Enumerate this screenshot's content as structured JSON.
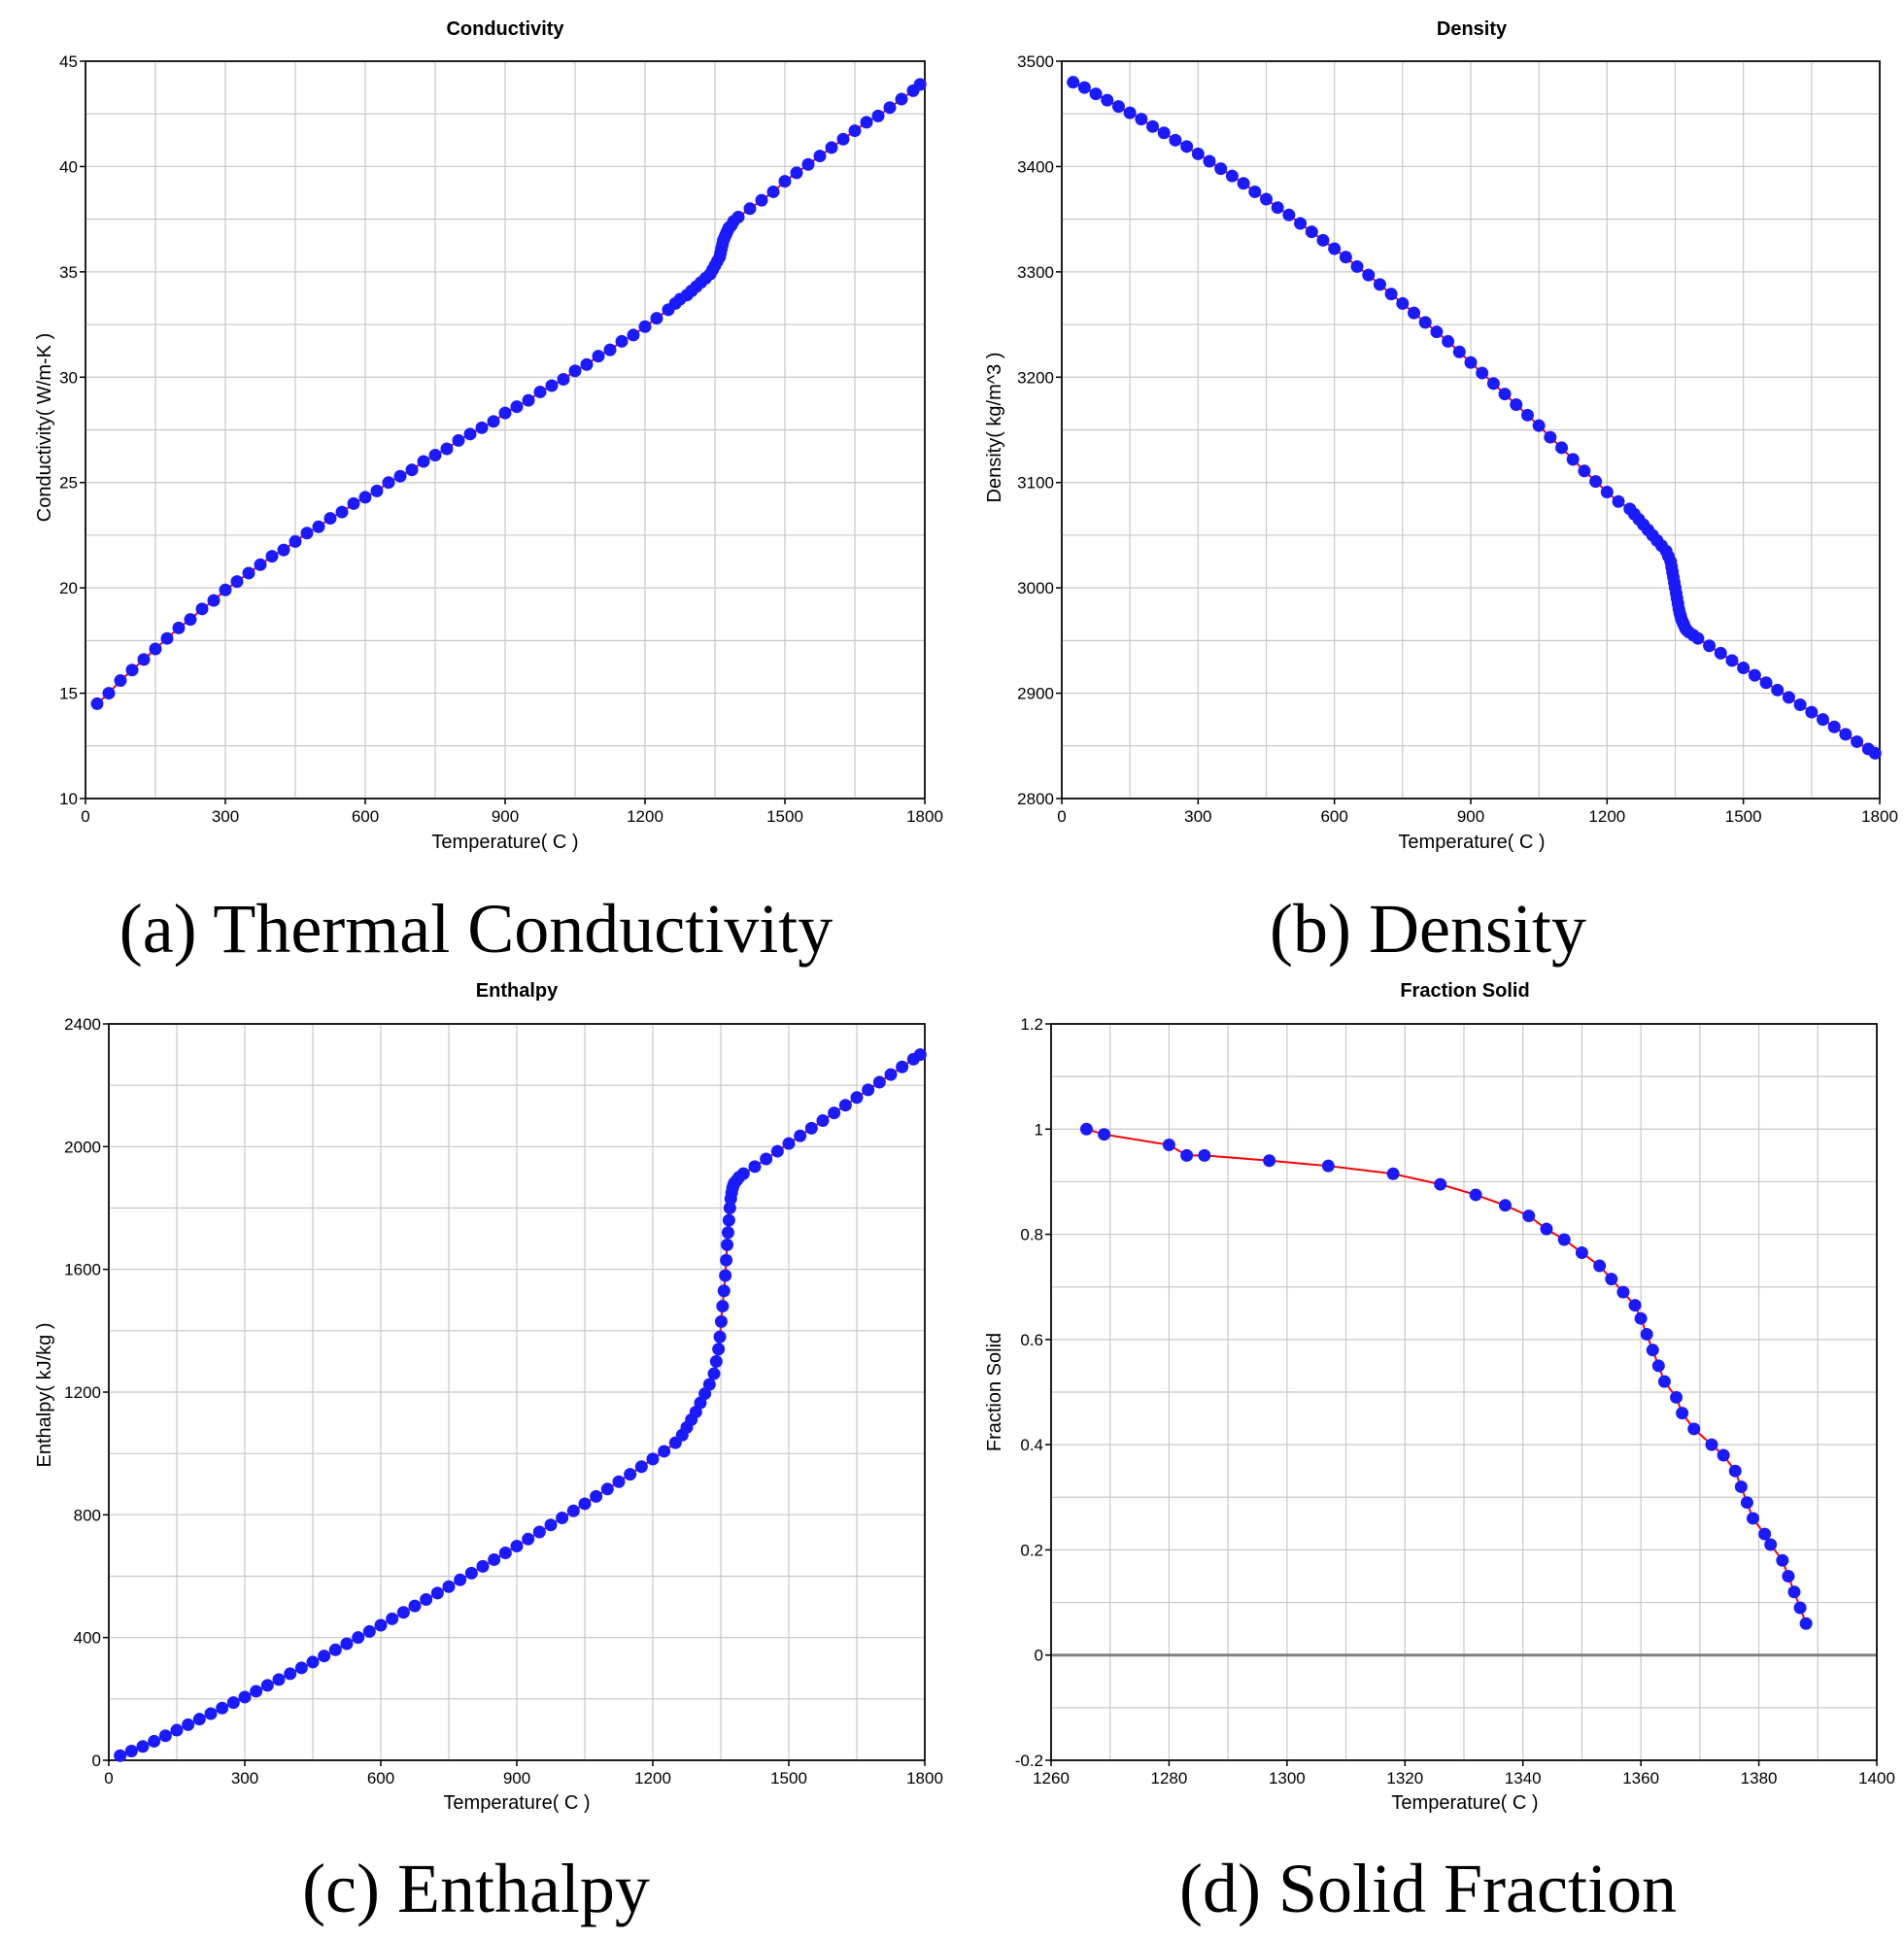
{
  "colors": {
    "marker": "#1a1aff",
    "line": "#ff0000",
    "zero_line": "#808080",
    "grid": "#c8c8c8"
  },
  "marker_shape": "filled-circle",
  "panels": [
    {
      "caption": "(a) Thermal Conductivity",
      "chart_data": {
        "type": "scatter",
        "title": "Conductivity",
        "xlabel": "Temperature( C )",
        "ylabel": "Conductivity( W/m-K )",
        "xlim": [
          0,
          1800
        ],
        "ylim": [
          10,
          45
        ],
        "xticks": [
          0,
          300,
          600,
          900,
          1200,
          1500,
          1800
        ],
        "yticks": [
          10,
          15,
          20,
          25,
          30,
          35,
          40,
          45
        ],
        "xgrid_step": 150,
        "ygrid_step": 2.5,
        "grid": true,
        "series": [
          {
            "x": [
              25,
              50,
              75,
              100,
              125,
              150,
              175,
              200,
              225,
              250,
              275,
              300,
              325,
              350,
              375,
              400,
              425,
              450,
              475,
              500,
              525,
              550,
              575,
              600,
              625,
              650,
              675,
              700,
              725,
              750,
              775,
              800,
              825,
              850,
              875,
              900,
              925,
              950,
              975,
              1000,
              1025,
              1050,
              1075,
              1100,
              1125,
              1150,
              1175,
              1200,
              1225,
              1250,
              1265,
              1275,
              1290,
              1300,
              1310,
              1320,
              1330,
              1340,
              1345,
              1350,
              1355,
              1360,
              1362,
              1364,
              1366,
              1368,
              1370,
              1372,
              1374,
              1376,
              1378,
              1380,
              1385,
              1390,
              1400,
              1425,
              1450,
              1475,
              1500,
              1525,
              1550,
              1575,
              1600,
              1625,
              1650,
              1675,
              1700,
              1725,
              1750,
              1775,
              1790
            ],
            "y": [
              14.5,
              15.0,
              15.6,
              16.1,
              16.6,
              17.1,
              17.6,
              18.1,
              18.5,
              19.0,
              19.4,
              19.9,
              20.3,
              20.7,
              21.1,
              21.5,
              21.8,
              22.2,
              22.6,
              22.9,
              23.3,
              23.6,
              24.0,
              24.3,
              24.6,
              25.0,
              25.3,
              25.6,
              26.0,
              26.3,
              26.6,
              27.0,
              27.3,
              27.6,
              27.9,
              28.3,
              28.6,
              28.9,
              29.3,
              29.6,
              29.9,
              30.3,
              30.6,
              31.0,
              31.3,
              31.7,
              32.0,
              32.4,
              32.8,
              33.2,
              33.5,
              33.7,
              33.9,
              34.1,
              34.3,
              34.5,
              34.7,
              34.9,
              35.1,
              35.3,
              35.5,
              35.7,
              35.9,
              36.1,
              36.3,
              36.5,
              36.6,
              36.7,
              36.8,
              36.9,
              37.0,
              37.1,
              37.2,
              37.4,
              37.6,
              38.0,
              38.4,
              38.8,
              39.3,
              39.7,
              40.1,
              40.5,
              40.9,
              41.3,
              41.7,
              42.1,
              42.4,
              42.8,
              43.2,
              43.6,
              43.9
            ]
          }
        ]
      }
    },
    {
      "caption": "(b) Density",
      "chart_data": {
        "type": "scatter",
        "title": "Density",
        "xlabel": "Temperature( C )",
        "ylabel": "Density( kg/m^3 )",
        "xlim": [
          0,
          1800
        ],
        "ylim": [
          2800,
          3500
        ],
        "xticks": [
          0,
          300,
          600,
          900,
          1200,
          1500,
          1800
        ],
        "yticks": [
          2800,
          2900,
          3000,
          3100,
          3200,
          3300,
          3400,
          3500
        ],
        "xgrid_step": 150,
        "ygrid_step": 50,
        "grid": true,
        "series": [
          {
            "x": [
              25,
              50,
              75,
              100,
              125,
              150,
              175,
              200,
              225,
              250,
              275,
              300,
              325,
              350,
              375,
              400,
              425,
              450,
              475,
              500,
              525,
              550,
              575,
              600,
              625,
              650,
              675,
              700,
              725,
              750,
              775,
              800,
              825,
              850,
              875,
              900,
              925,
              950,
              975,
              1000,
              1025,
              1050,
              1075,
              1100,
              1125,
              1150,
              1175,
              1200,
              1225,
              1250,
              1260,
              1270,
              1280,
              1290,
              1300,
              1310,
              1320,
              1330,
              1335,
              1340,
              1342,
              1344,
              1346,
              1348,
              1350,
              1352,
              1354,
              1356,
              1358,
              1360,
              1362,
              1364,
              1366,
              1368,
              1370,
              1372,
              1375,
              1380,
              1390,
              1400,
              1425,
              1450,
              1475,
              1500,
              1525,
              1550,
              1575,
              1600,
              1625,
              1650,
              1675,
              1700,
              1725,
              1750,
              1775,
              1790
            ],
            "y": [
              3480,
              3475,
              3469,
              3463,
              3457,
              3451,
              3445,
              3438,
              3432,
              3425,
              3419,
              3412,
              3405,
              3398,
              3391,
              3384,
              3376,
              3369,
              3361,
              3354,
              3346,
              3338,
              3330,
              3322,
              3314,
              3305,
              3297,
              3288,
              3279,
              3270,
              3261,
              3252,
              3243,
              3234,
              3224,
              3214,
              3204,
              3194,
              3184,
              3174,
              3164,
              3154,
              3143,
              3133,
              3122,
              3111,
              3101,
              3091,
              3082,
              3075,
              3070,
              3065,
              3060,
              3055,
              3050,
              3045,
              3040,
              3035,
              3030,
              3025,
              3020,
              3015,
              3010,
              3005,
              3000,
              2995,
              2990,
              2985,
              2980,
              2976,
              2973,
              2970,
              2968,
              2966,
              2964,
              2962,
              2960,
              2958,
              2955,
              2952,
              2945,
              2938,
              2931,
              2924,
              2917,
              2910,
              2903,
              2896,
              2889,
              2882,
              2875,
              2868,
              2861,
              2854,
              2847,
              2843
            ]
          }
        ]
      }
    },
    {
      "caption": "(c) Enthalpy",
      "chart_data": {
        "type": "scatter",
        "title": "Enthalpy",
        "xlabel": "Temperature( C )",
        "ylabel": "Enthalpy( kJ/kg )",
        "xlim": [
          0,
          1800
        ],
        "ylim": [
          0,
          2400
        ],
        "xticks": [
          0,
          300,
          600,
          900,
          1200,
          1500,
          1800
        ],
        "yticks": [
          0,
          400,
          800,
          1200,
          1600,
          2000,
          2400
        ],
        "xgrid_step": 150,
        "ygrid_step": 200,
        "grid": true,
        "series": [
          {
            "x": [
              25,
              50,
              75,
              100,
              125,
              150,
              175,
              200,
              225,
              250,
              275,
              300,
              325,
              350,
              375,
              400,
              425,
              450,
              475,
              500,
              525,
              550,
              575,
              600,
              625,
              650,
              675,
              700,
              725,
              750,
              775,
              800,
              825,
              850,
              875,
              900,
              925,
              950,
              975,
              1000,
              1025,
              1050,
              1075,
              1100,
              1125,
              1150,
              1175,
              1200,
              1225,
              1250,
              1265,
              1275,
              1285,
              1295,
              1305,
              1315,
              1325,
              1335,
              1340,
              1345,
              1348,
              1351,
              1354,
              1357,
              1360,
              1362,
              1364,
              1366,
              1368,
              1370,
              1372,
              1374,
              1376,
              1378,
              1380,
              1385,
              1390,
              1400,
              1425,
              1450,
              1475,
              1500,
              1525,
              1550,
              1575,
              1600,
              1625,
              1650,
              1675,
              1700,
              1725,
              1750,
              1775,
              1790
            ],
            "y": [
              15,
              30,
              45,
              62,
              80,
              98,
              116,
              134,
              152,
              170,
              188,
              206,
              225,
              244,
              263,
              282,
              301,
              320,
              340,
              360,
              380,
              400,
              420,
              440,
              461,
              482,
              503,
              524,
              545,
              566,
              588,
              610,
              632,
              654,
              676,
              698,
              721,
              744,
              767,
              790,
              813,
              836,
              860,
              884,
              908,
              932,
              957,
              982,
              1007,
              1035,
              1060,
              1085,
              1110,
              1135,
              1165,
              1195,
              1225,
              1260,
              1300,
              1340,
              1380,
              1430,
              1480,
              1530,
              1580,
              1630,
              1680,
              1720,
              1760,
              1800,
              1830,
              1850,
              1865,
              1875,
              1882,
              1890,
              1900,
              1912,
              1935,
              1960,
              1985,
              2010,
              2035,
              2060,
              2085,
              2110,
              2135,
              2160,
              2185,
              2210,
              2235,
              2260,
              2285,
              2300
            ]
          }
        ]
      }
    },
    {
      "caption": "(d) Solid Fraction",
      "chart_data": {
        "type": "line",
        "title": "Fraction Solid",
        "xlabel": "Temperature( C )",
        "ylabel": "Fraction Solid",
        "xlim": [
          1260,
          1400
        ],
        "ylim": [
          -0.2,
          1.2
        ],
        "xticks": [
          1260,
          1280,
          1300,
          1320,
          1340,
          1360,
          1380,
          1400
        ],
        "yticks": [
          -0.2,
          0,
          0.2,
          0.4,
          0.6,
          0.8,
          1,
          1.2
        ],
        "xgrid_step": 10,
        "ygrid_step": 0.1,
        "grid": true,
        "markers": true,
        "series": [
          {
            "x": [
              1266,
              1269,
              1280,
              1283,
              1286,
              1297,
              1307,
              1318,
              1326,
              1332,
              1337,
              1341,
              1344,
              1347,
              1350,
              1353,
              1355,
              1357,
              1359,
              1360,
              1361,
              1362,
              1363,
              1364,
              1366,
              1367,
              1369,
              1372,
              1374,
              1376,
              1377,
              1378,
              1379,
              1381,
              1382,
              1384,
              1385,
              1386,
              1387,
              1388
            ],
            "y": [
              1.0,
              0.99,
              0.97,
              0.95,
              0.95,
              0.94,
              0.93,
              0.915,
              0.895,
              0.875,
              0.855,
              0.835,
              0.81,
              0.79,
              0.765,
              0.74,
              0.715,
              0.69,
              0.665,
              0.64,
              0.61,
              0.58,
              0.55,
              0.52,
              0.49,
              0.46,
              0.43,
              0.4,
              0.38,
              0.35,
              0.32,
              0.29,
              0.26,
              0.23,
              0.21,
              0.18,
              0.15,
              0.12,
              0.09,
              0.06
            ]
          }
        ]
      }
    }
  ]
}
